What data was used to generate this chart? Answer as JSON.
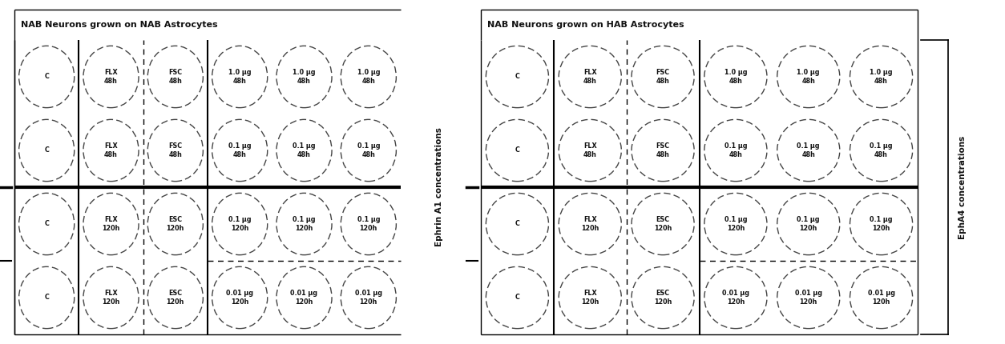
{
  "left_title": "NAB Neurons grown on NAB Astrocytes",
  "right_title": "NAB Neurons grown on HAB Astrocytes",
  "left_ylabel": "Ephrin A1 concentrations",
  "right_ylabel": "EphA4 concentrations",
  "rows": [
    [
      "C",
      "FLX\n48h",
      "FSC\n48h",
      "1.0 μg\n48h",
      "1.0 μg\n48h",
      "1.0 μg\n48h"
    ],
    [
      "C",
      "FLX\n48h",
      "FSC\n48h",
      "0.1 μg\n48h",
      "0.1 μg\n48h",
      "0.1 μg\n48h"
    ],
    [
      "C",
      "FLX\n120h",
      "ESC\n120h",
      "0.1 μg\n120h",
      "0.1 μg\n120h",
      "0.1 μg\n120h"
    ],
    [
      "C",
      "FLX\n120h",
      "ESC\n120h",
      "0.01 μg\n120h",
      "0.01 μg\n120h",
      "0.01 μg\n120h"
    ]
  ],
  "background_color": "#ffffff",
  "text_color": "#111111",
  "circle_edge_color": "#444444",
  "font_size": 5.8,
  "title_font_size": 8.0
}
